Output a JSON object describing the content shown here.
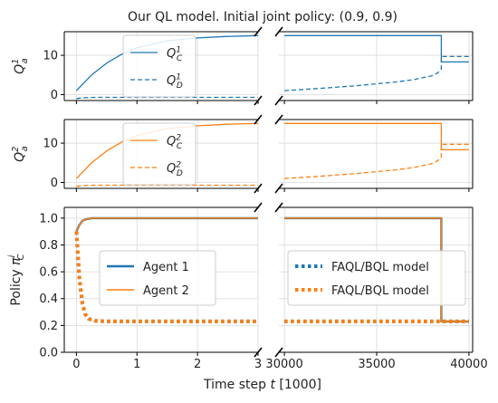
{
  "chart_data": {
    "type": "line",
    "title": "Our QL model. Initial joint policy: (0.9, 0.9)",
    "xlabel": "Time step t [1000]",
    "colors": {
      "agent1": "#1f77b4",
      "agent2": "#ff7f0e"
    },
    "x_left": {
      "range": [
        -0.2,
        3.0
      ],
      "ticks": [
        0,
        1,
        2,
        3
      ],
      "tick_labels": [
        "0",
        "1",
        "2",
        "3"
      ]
    },
    "x_right": {
      "range": [
        29700,
        40200
      ],
      "ticks": [
        30000,
        35000,
        40000
      ],
      "tick_labels": [
        "30000",
        "35000",
        "40000"
      ]
    },
    "grid": true,
    "broken_x_axis": true,
    "panels": [
      {
        "id": "q1",
        "ylabel": "Q_a^1",
        "ylim": [
          -1.5,
          16
        ],
        "yticks": [
          0,
          10
        ],
        "ytick_labels": [
          "0",
          "10"
        ],
        "legend": [
          {
            "label": "Q_C^1",
            "color": "#1f77b4",
            "style": "solid"
          },
          {
            "label": "Q_D^1",
            "color": "#1f77b4",
            "style": "dashed"
          }
        ],
        "series": [
          {
            "name": "Q_C^1",
            "style": "solid",
            "color": "#1f77b4",
            "width": 1.3,
            "left": {
              "x": [
                0,
                0.25,
                0.5,
                0.75,
                1.0,
                1.5,
                2.0,
                2.5,
                3.0
              ],
              "y": [
                1.0,
                5.0,
                8.0,
                10.3,
                11.9,
                13.7,
                14.4,
                14.8,
                15.0
              ]
            },
            "right": {
              "x": [
                30000,
                38500,
                38500,
                40000
              ],
              "y": [
                15.0,
                15.0,
                8.3,
                8.3
              ]
            }
          },
          {
            "name": "Q_D^1",
            "style": "dashed",
            "color": "#1f77b4",
            "width": 1.3,
            "left": {
              "x": [
                0,
                0.1,
                0.3,
                1.0,
                2.0,
                3.0
              ],
              "y": [
                -1.0,
                -0.8,
                -0.7,
                -0.7,
                -0.7,
                -0.7
              ]
            },
            "right": {
              "x": [
                30000,
                32000,
                34000,
                36000,
                37000,
                38000,
                38300,
                38500,
                38500,
                40000
              ],
              "y": [
                1.0,
                1.6,
                2.3,
                3.2,
                3.8,
                4.8,
                5.5,
                6.5,
                9.7,
                9.7
              ]
            }
          }
        ]
      },
      {
        "id": "q2",
        "ylabel": "Q_a^2",
        "ylim": [
          -1.5,
          16
        ],
        "yticks": [
          0,
          10
        ],
        "ytick_labels": [
          "0",
          "10"
        ],
        "legend": [
          {
            "label": "Q_C^2",
            "color": "#ff7f0e",
            "style": "solid"
          },
          {
            "label": "Q_D^2",
            "color": "#ff7f0e",
            "style": "dashed"
          }
        ],
        "series": [
          {
            "name": "Q_C^2",
            "style": "solid",
            "color": "#ff7f0e",
            "width": 1.3,
            "left": {
              "x": [
                0,
                0.25,
                0.5,
                0.75,
                1.0,
                1.5,
                2.0,
                2.5,
                3.0
              ],
              "y": [
                1.0,
                5.0,
                8.0,
                10.3,
                11.9,
                13.7,
                14.4,
                14.8,
                15.0
              ]
            },
            "right": {
              "x": [
                30000,
                38500,
                38500,
                40000
              ],
              "y": [
                15.0,
                15.0,
                8.3,
                8.3
              ]
            }
          },
          {
            "name": "Q_D^2",
            "style": "dashed",
            "color": "#ff7f0e",
            "width": 1.3,
            "left": {
              "x": [
                0,
                0.1,
                0.3,
                1.0,
                2.0,
                3.0
              ],
              "y": [
                -1.0,
                -0.8,
                -0.7,
                -0.7,
                -0.7,
                -0.7
              ]
            },
            "right": {
              "x": [
                30000,
                32000,
                34000,
                36000,
                37000,
                38000,
                38300,
                38500,
                38500,
                40000
              ],
              "y": [
                1.0,
                1.6,
                2.3,
                3.2,
                3.8,
                4.8,
                5.5,
                6.5,
                9.7,
                9.7
              ]
            }
          }
        ]
      },
      {
        "id": "policy",
        "ylabel": "Policy π_C^i",
        "ylim": [
          0,
          1.08
        ],
        "yticks": [
          0.0,
          0.2,
          0.4,
          0.6,
          0.8,
          1.0
        ],
        "ytick_labels": [
          "0.0",
          "0.2",
          "0.4",
          "0.6",
          "0.8",
          "1.0"
        ],
        "legend_left": [
          {
            "label": "Agent 1",
            "color": "#1f77b4",
            "style": "solid",
            "width": 2.4
          },
          {
            "label": "Agent 2",
            "color": "#ff7f0e",
            "style": "solid",
            "width": 1.5
          }
        ],
        "legend_right": [
          {
            "label": "FAQL/BQL model",
            "color": "#1f77b4",
            "style": "dotted"
          },
          {
            "label": "FAQL/BQL model",
            "color": "#ff7f0e",
            "style": "dotted"
          }
        ],
        "series": [
          {
            "name": "Agent 1",
            "style": "solid",
            "color": "#1f77b4",
            "width": 2.4,
            "left": {
              "x": [
                0,
                0.05,
                0.1,
                0.15,
                0.25,
                3.0
              ],
              "y": [
                0.9,
                0.95,
                0.98,
                0.99,
                1.0,
                1.0
              ]
            },
            "right": {
              "x": [
                30000,
                38500,
                38500,
                40000
              ],
              "y": [
                1.0,
                1.0,
                0.23,
                0.23
              ]
            }
          },
          {
            "name": "Agent 2",
            "style": "solid",
            "color": "#ff7f0e",
            "width": 1.5,
            "left": {
              "x": [
                0,
                0.05,
                0.1,
                0.15,
                0.25,
                3.0
              ],
              "y": [
                0.9,
                0.95,
                0.98,
                0.99,
                1.0,
                1.0
              ]
            },
            "right": {
              "x": [
                30000,
                38500,
                38500,
                40000
              ],
              "y": [
                1.0,
                1.0,
                0.23,
                0.23
              ]
            }
          },
          {
            "name": "FAQL/BQL model (agent 1)",
            "style": "dotted",
            "color": "#1f77b4",
            "width": 4,
            "left": {
              "x": [
                0,
                0.05,
                0.1,
                0.15,
                0.2,
                0.3,
                0.5,
                3.0
              ],
              "y": [
                0.9,
                0.55,
                0.36,
                0.28,
                0.25,
                0.235,
                0.23,
                0.23
              ]
            },
            "right": {
              "x": [
                30000,
                40000
              ],
              "y": [
                0.23,
                0.23
              ]
            }
          },
          {
            "name": "FAQL/BQL model (agent 2)",
            "style": "dotted",
            "color": "#ff7f0e",
            "width": 4,
            "left": {
              "x": [
                0,
                0.05,
                0.1,
                0.15,
                0.2,
                0.3,
                0.5,
                3.0
              ],
              "y": [
                0.9,
                0.55,
                0.36,
                0.28,
                0.25,
                0.235,
                0.23,
                0.23
              ]
            },
            "right": {
              "x": [
                30000,
                40000
              ],
              "y": [
                0.23,
                0.23
              ]
            }
          }
        ]
      }
    ]
  }
}
